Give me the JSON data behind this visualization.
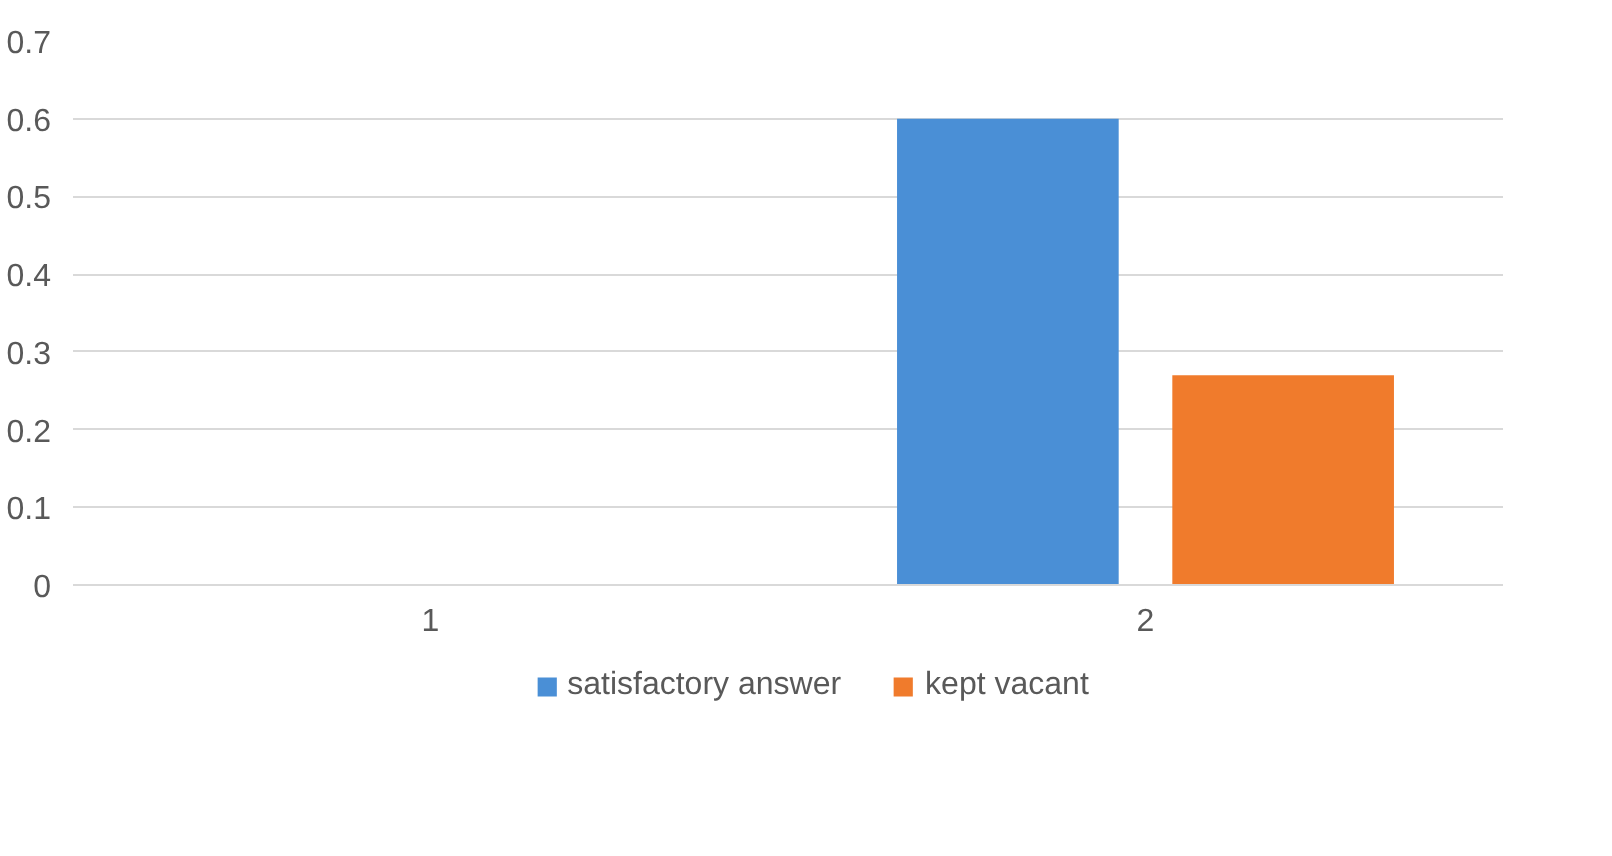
{
  "chart_data": {
    "type": "bar",
    "categories": [
      "1",
      "2"
    ],
    "series": [
      {
        "name": "satisfactory answer",
        "color": "#4a8fd6",
        "values": [
          0,
          0.6
        ]
      },
      {
        "name": "kept vacant",
        "color": "#f07b2c",
        "values": [
          0,
          0.27
        ]
      }
    ],
    "ylim": [
      0,
      0.7
    ],
    "yticks": [
      0,
      0.1,
      0.2,
      0.3,
      0.4,
      0.5,
      0.6,
      0.7
    ],
    "grid": "y",
    "legend": "bottom"
  }
}
